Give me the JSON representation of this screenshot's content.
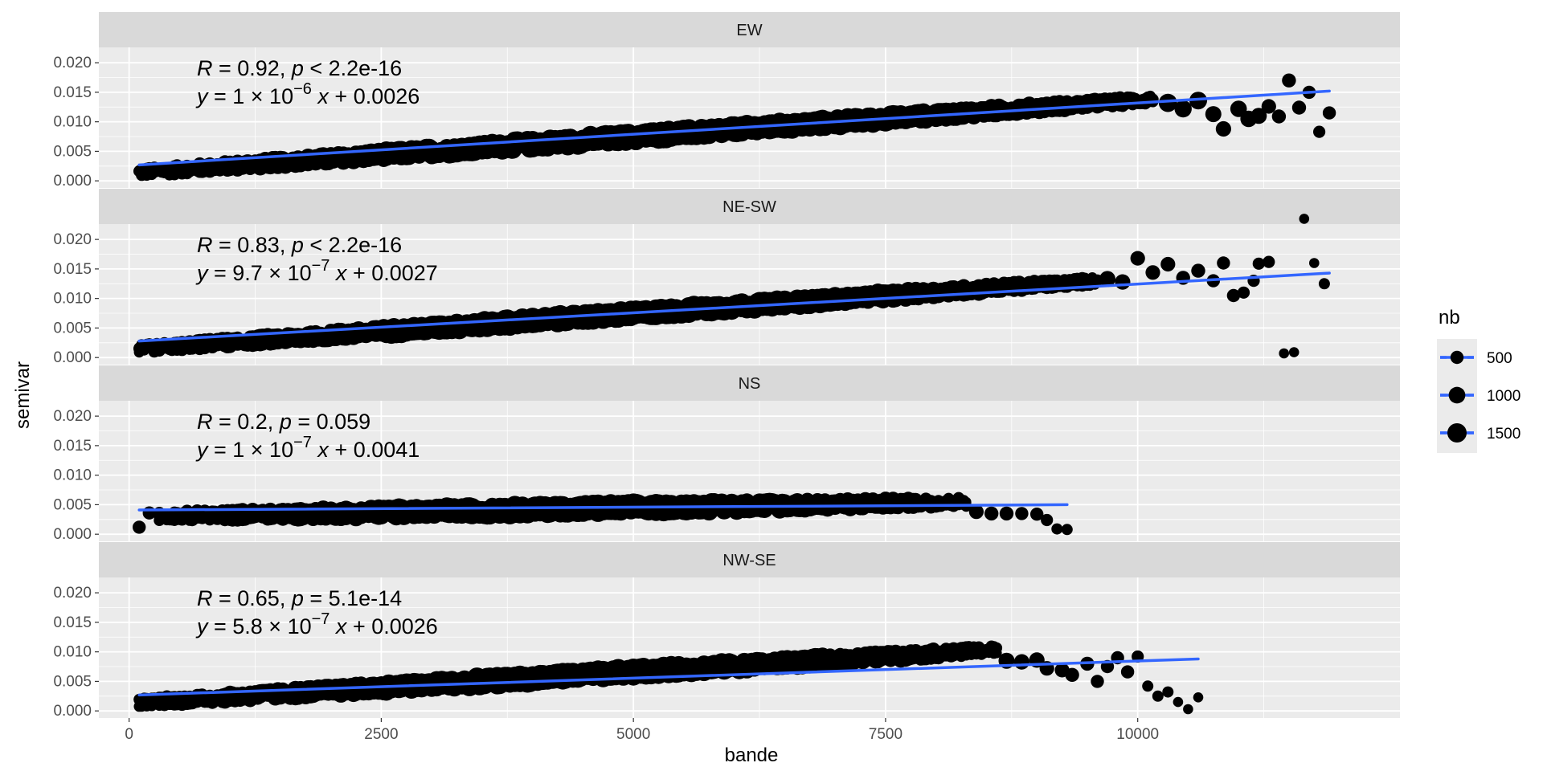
{
  "chart_data": {
    "type": "scatter",
    "xlabel": "bande",
    "ylabel": "semivar",
    "xlim": [
      -300,
      12600
    ],
    "ylim": [
      -0.0012,
      0.0226
    ],
    "x_ticks": [
      0,
      2500,
      5000,
      7500,
      10000
    ],
    "x_tick_labels": [
      "0",
      "2500",
      "5000",
      "7500",
      "10000"
    ],
    "y_ticks": [
      0.0,
      0.005,
      0.01,
      0.015,
      0.02
    ],
    "y_tick_labels": [
      "0.000",
      "0.005",
      "0.010",
      "0.015",
      "0.020"
    ],
    "grid": true,
    "colors": {
      "points": "#000000",
      "fit_line": "#3366FF",
      "panel_bg": "#EBEBEB",
      "strip_bg": "#D9D9D9"
    },
    "legend": {
      "title": "nb",
      "placement": "right",
      "entries": [
        {
          "label": "500",
          "nb": 500
        },
        {
          "label": "1000",
          "nb": 1000
        },
        {
          "label": "1500",
          "nb": 1500
        }
      ]
    },
    "panels": [
      {
        "name": "EW",
        "stats": {
          "r_label": "R",
          "r": "0.92",
          "p_label": "p",
          "p_op": "<",
          "p": "2.2e-16"
        },
        "equation": {
          "slope": "1",
          "exponent": "−6",
          "intercept": "0.0026"
        },
        "fit": {
          "x": [
            100,
            11900
          ],
          "y": [
            0.0027,
            0.0152
          ]
        },
        "bulk": {
          "x_start": 100,
          "x_end": 10150,
          "intercept": 0.0009,
          "slope": 1.23e-06,
          "spread": 0.0015
        },
        "points": [
          [
            10300,
            0.0132,
            1300
          ],
          [
            10450,
            0.0122,
            1100
          ],
          [
            10600,
            0.0136,
            1200
          ],
          [
            10750,
            0.0113,
            900
          ],
          [
            10850,
            0.0088,
            800
          ],
          [
            11000,
            0.0122,
            1000
          ],
          [
            11100,
            0.0105,
            1000
          ],
          [
            11200,
            0.011,
            900
          ],
          [
            11300,
            0.0126,
            700
          ],
          [
            11400,
            0.0109,
            600
          ],
          [
            11500,
            0.017,
            600
          ],
          [
            11600,
            0.0124,
            600
          ],
          [
            11700,
            0.015,
            500
          ],
          [
            11800,
            0.0083,
            400
          ],
          [
            11900,
            0.0115,
            500
          ]
        ]
      },
      {
        "name": "NE-SW",
        "stats": {
          "r_label": "R",
          "r": "0.83",
          "p_label": "p",
          "p_op": "<",
          "p": "2.2e-16"
        },
        "equation": {
          "slope": "9.7",
          "exponent": "−7",
          "intercept": "0.0027"
        },
        "fit": {
          "x": [
            100,
            11900
          ],
          "y": [
            0.0028,
            0.0143
          ]
        },
        "bulk": {
          "x_start": 100,
          "x_end": 9600,
          "intercept": 0.001,
          "slope": 1.21e-06,
          "spread": 0.0014
        },
        "points": [
          [
            9700,
            0.0133,
            900
          ],
          [
            9850,
            0.0128,
            800
          ],
          [
            10000,
            0.0168,
            700
          ],
          [
            10150,
            0.0144,
            700
          ],
          [
            10300,
            0.0158,
            700
          ],
          [
            10450,
            0.0135,
            600
          ],
          [
            10600,
            0.0147,
            600
          ],
          [
            10750,
            0.013,
            500
          ],
          [
            10850,
            0.016,
            500
          ],
          [
            10950,
            0.0105,
            500
          ],
          [
            11050,
            0.011,
            400
          ],
          [
            11150,
            0.013,
            400
          ],
          [
            11200,
            0.0159,
            400
          ],
          [
            11300,
            0.0162,
            400
          ],
          [
            11450,
            0.0007,
            200
          ],
          [
            11550,
            0.0009,
            200
          ],
          [
            11650,
            0.0235,
            200
          ],
          [
            11750,
            0.016,
            200
          ],
          [
            11850,
            0.0125,
            300
          ]
        ]
      },
      {
        "name": "NS",
        "stats": {
          "r_label": "R",
          "r": "0.2",
          "p_label": "p",
          "p_op": "=",
          "p": "0.059"
        },
        "equation": {
          "slope": "1",
          "exponent": "−7",
          "intercept": "0.0041"
        },
        "fit": {
          "x": [
            100,
            9300
          ],
          "y": [
            0.0041,
            0.005
          ]
        },
        "bulk": {
          "x_start": 300,
          "x_end": 8300,
          "intercept": 0.0025,
          "slope": 3e-07,
          "spread": 0.0016
        },
        "points": [
          [
            100,
            0.0012,
            500
          ],
          [
            200,
            0.0036,
            500
          ],
          [
            8400,
            0.0038,
            700
          ],
          [
            8550,
            0.0035,
            600
          ],
          [
            8700,
            0.0035,
            600
          ],
          [
            8850,
            0.0035,
            500
          ],
          [
            9000,
            0.0034,
            500
          ],
          [
            9100,
            0.0024,
            400
          ],
          [
            9200,
            0.0009,
            300
          ],
          [
            9300,
            0.0008,
            300
          ]
        ]
      },
      {
        "name": "NW-SE",
        "stats": {
          "r_label": "R",
          "r": "0.65",
          "p_label": "p",
          "p_op": "=",
          "p": "5.1e-14"
        },
        "equation": {
          "slope": "5.8",
          "exponent": "−7",
          "intercept": "0.0026"
        },
        "fit": {
          "x": [
            100,
            10600
          ],
          "y": [
            0.0027,
            0.0088
          ]
        },
        "bulk": {
          "x_start": 100,
          "x_end": 8600,
          "intercept": 0.0009,
          "slope": 1.05e-06,
          "spread": 0.0015
        },
        "points": [
          [
            8700,
            0.0085,
            900
          ],
          [
            8850,
            0.0083,
            800
          ],
          [
            9000,
            0.0086,
            800
          ],
          [
            9100,
            0.0072,
            700
          ],
          [
            9250,
            0.0069,
            700
          ],
          [
            9350,
            0.0061,
            600
          ],
          [
            9500,
            0.008,
            600
          ],
          [
            9600,
            0.005,
            500
          ],
          [
            9700,
            0.0075,
            500
          ],
          [
            9800,
            0.009,
            500
          ],
          [
            9900,
            0.0066,
            500
          ],
          [
            10000,
            0.0092,
            400
          ],
          [
            10100,
            0.0042,
            300
          ],
          [
            10200,
            0.0025,
            300
          ],
          [
            10300,
            0.0032,
            300
          ],
          [
            10400,
            0.0015,
            200
          ],
          [
            10500,
            0.0003,
            200
          ],
          [
            10600,
            0.0023,
            200
          ]
        ]
      }
    ]
  }
}
